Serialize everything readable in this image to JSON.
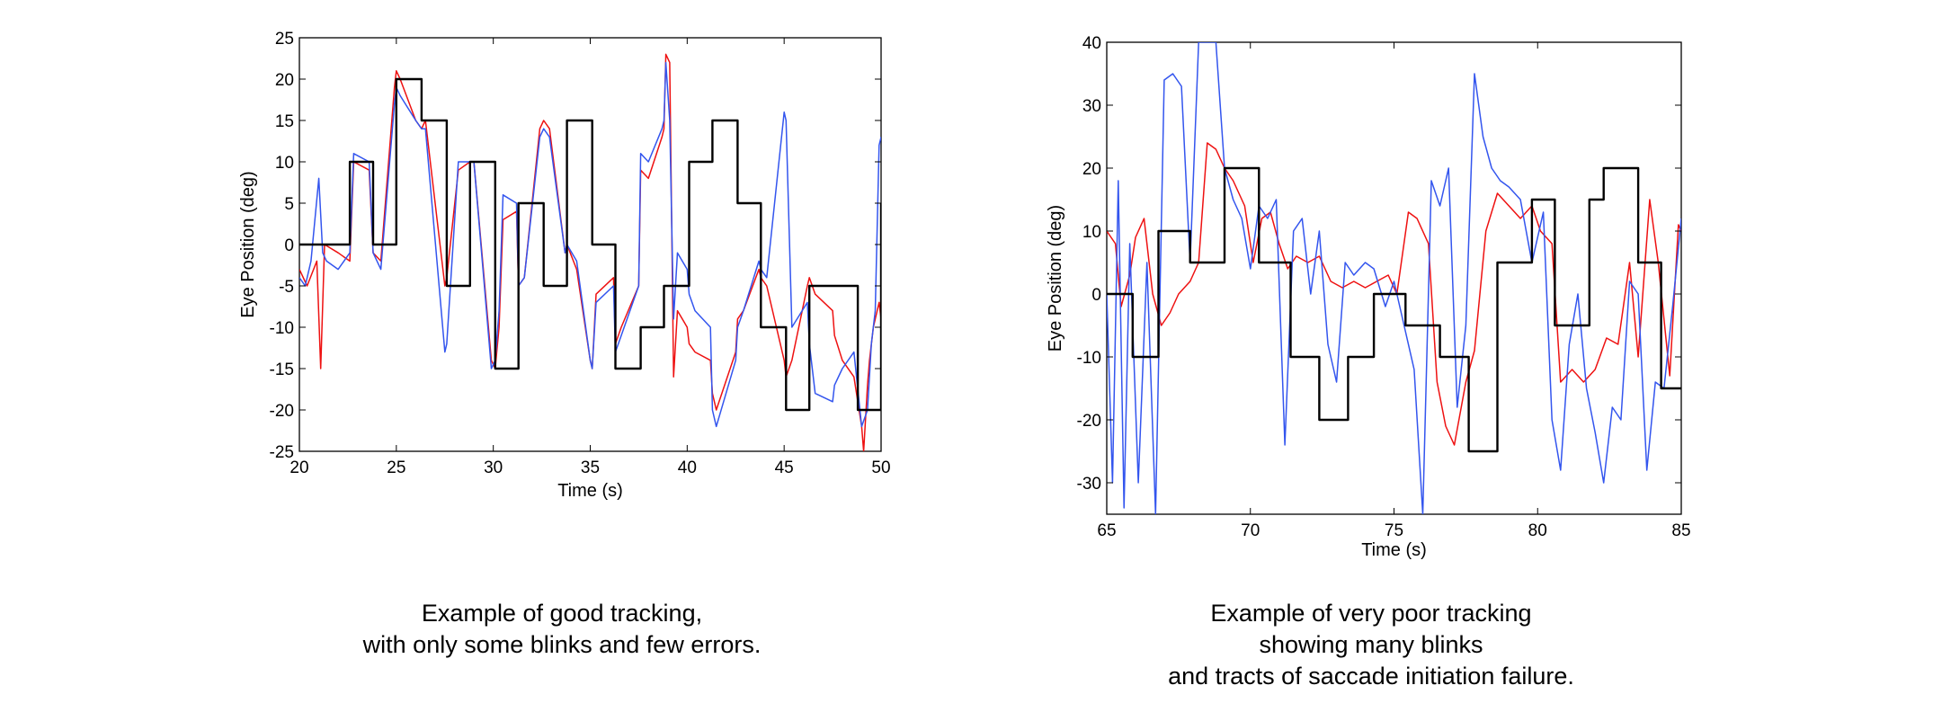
{
  "chart_data": [
    {
      "type": "line",
      "xlabel": "Time (s)",
      "ylabel": "Eye Position (deg)",
      "xlim": [
        20,
        50
      ],
      "ylim": [
        -25,
        25
      ],
      "xticks": [
        20,
        25,
        30,
        35,
        40,
        45,
        50
      ],
      "xtick_labels": [
        "20",
        "25",
        "30",
        "35",
        "40",
        "45",
        "50"
      ],
      "yticks": [
        25,
        20,
        15,
        10,
        5,
        0,
        -5,
        -10,
        -15,
        -20,
        -25
      ],
      "ytick_labels": [
        "25",
        "20",
        "15",
        "10",
        "5",
        "0",
        "-5",
        "-10",
        "-15",
        "-20",
        "-25"
      ],
      "grid": false,
      "series": [
        {
          "color": "#000000",
          "step": true,
          "x": [
            20,
            22.6,
            23.8,
            25,
            26.3,
            27.6,
            28.8,
            30.1,
            31.3,
            32.6,
            33.8,
            35.1,
            36.3,
            37.6,
            38.8,
            40.1,
            41.3,
            42.6,
            43.8,
            45.1,
            46.3,
            47.6,
            48.8,
            50
          ],
          "y": [
            0,
            10,
            0,
            20,
            15,
            -5,
            10,
            -15,
            5,
            -5,
            15,
            0,
            -15,
            -10,
            -5,
            10,
            15,
            5,
            -10,
            -20,
            -5,
            -5,
            -20,
            5
          ]
        },
        {
          "color": "#ee1111",
          "x": [
            20.0,
            20.4,
            20.9,
            21.1,
            21.3,
            22.0,
            22.6,
            22.8,
            23.6,
            23.8,
            24.2,
            24.9,
            25.0,
            25.2,
            26.0,
            26.3,
            26.5,
            27.5,
            27.6,
            28.2,
            28.8,
            29.0,
            29.9,
            30.1,
            30.3,
            30.5,
            31.2,
            31.3,
            31.6,
            32.4,
            32.6,
            32.9,
            33.7,
            33.8,
            34.3,
            35.0,
            35.1,
            35.3,
            36.2,
            36.3,
            36.6,
            37.5,
            37.6,
            38.0,
            38.7,
            38.8,
            38.9,
            39.1,
            39.3,
            39.5,
            40.0,
            40.1,
            40.4,
            41.2,
            41.3,
            41.5,
            42.5,
            42.6,
            42.9,
            43.7,
            43.8,
            44.1,
            45.0,
            45.1,
            45.4,
            46.2,
            46.3,
            46.6,
            47.5,
            47.6,
            48.0,
            48.6,
            49.0,
            49.1,
            49.3,
            49.4,
            49.6,
            49.9,
            50.0
          ],
          "y": [
            -3,
            -5,
            -2,
            -15,
            0,
            -1,
            -2,
            10,
            9,
            -1,
            -2,
            19,
            21,
            20,
            15,
            14,
            15,
            -5,
            -4,
            9,
            10,
            10,
            -14,
            -15,
            -10,
            3,
            4,
            -5,
            -4,
            14,
            15,
            14,
            -1,
            0,
            -3,
            -14,
            -15,
            -6,
            -4,
            -12,
            -10,
            -5,
            9,
            8,
            13,
            14,
            23,
            22,
            -16,
            -8,
            -10,
            -12,
            -13,
            -14,
            -18,
            -20,
            -13,
            -9,
            -8,
            -3,
            -4,
            -5,
            -14,
            -16,
            -14,
            -5,
            -4,
            -6,
            -8,
            -11,
            -14,
            -16,
            -22,
            -25,
            -17,
            -14,
            -10,
            -7,
            -9
          ]
        },
        {
          "color": "#3355ee",
          "x": [
            20.0,
            20.3,
            20.6,
            21.0,
            21.2,
            21.4,
            22.0,
            22.6,
            22.8,
            23.6,
            23.8,
            24.2,
            24.9,
            25.0,
            25.2,
            26.0,
            26.3,
            26.5,
            27.5,
            27.6,
            28.2,
            28.8,
            29.0,
            29.9,
            30.1,
            30.3,
            30.5,
            31.2,
            31.3,
            31.6,
            32.4,
            32.6,
            32.9,
            33.7,
            33.8,
            34.3,
            35.0,
            35.1,
            35.3,
            36.2,
            36.3,
            36.6,
            37.5,
            37.6,
            38.0,
            38.7,
            38.8,
            38.9,
            39.1,
            39.3,
            39.5,
            40.0,
            40.1,
            40.4,
            41.2,
            41.3,
            41.5,
            42.5,
            42.6,
            42.9,
            43.7,
            43.8,
            44.1,
            45.0,
            45.1,
            45.4,
            46.2,
            46.3,
            46.6,
            47.5,
            47.6,
            48.0,
            48.6,
            49.0,
            49.3,
            49.5,
            49.7,
            49.9,
            50.0
          ],
          "y": [
            -4,
            -5,
            -2,
            8,
            -1,
            -2,
            -3,
            -1,
            11,
            10,
            -1,
            -3,
            17,
            19,
            18,
            15,
            14,
            14,
            -13,
            -12,
            10,
            10,
            10,
            -15,
            -14,
            -8,
            6,
            5,
            -5,
            -4,
            13,
            14,
            13,
            -1,
            0,
            -2,
            -14,
            -15,
            -7,
            -5,
            -13,
            -11,
            -5,
            11,
            10,
            14,
            15,
            22,
            15,
            -9,
            -1,
            -3,
            -6,
            -8,
            -10,
            -20,
            -22,
            -14,
            -10,
            -8,
            -2,
            -3,
            -4,
            16,
            15,
            -10,
            -7,
            -12,
            -18,
            -19,
            -17,
            -15,
            -13,
            -22,
            -20,
            -12,
            -8,
            12,
            13
          ]
        }
      ]
    },
    {
      "type": "line",
      "xlabel": "Time (s)",
      "ylabel": "Eye Position (deg)",
      "xlim": [
        65,
        85
      ],
      "ylim": [
        -35,
        40
      ],
      "xticks": [
        65,
        70,
        75,
        80,
        85
      ],
      "xtick_labels": [
        "65",
        "70",
        "75",
        "80",
        "85"
      ],
      "yticks": [
        40,
        30,
        20,
        10,
        0,
        -10,
        -20,
        -30
      ],
      "ytick_labels": [
        "40",
        "30",
        "20",
        "10",
        "0",
        "-10",
        "-20",
        "-30"
      ],
      "grid": false,
      "series": [
        {
          "color": "#000000",
          "step": true,
          "x": [
            65,
            65.9,
            66.8,
            67.9,
            69.1,
            70.3,
            71.4,
            72.4,
            73.4,
            74.3,
            75.4,
            76.6,
            77.6,
            78.6,
            79.8,
            80.6,
            81.8,
            82.3,
            83.5,
            84.3,
            85
          ],
          "y": [
            0,
            -10,
            10,
            5,
            20,
            5,
            -10,
            -20,
            -10,
            0,
            -5,
            -10,
            -25,
            5,
            15,
            -5,
            15,
            20,
            5,
            -15,
            -15
          ]
        },
        {
          "color": "#ee1111",
          "x": [
            65.0,
            65.3,
            65.5,
            65.8,
            66.0,
            66.3,
            66.6,
            66.9,
            67.2,
            67.5,
            67.9,
            68.2,
            68.5,
            68.8,
            69.1,
            69.4,
            69.8,
            70.1,
            70.4,
            70.7,
            71.0,
            71.3,
            71.6,
            72.0,
            72.4,
            72.8,
            73.2,
            73.6,
            74.0,
            74.4,
            74.8,
            75.1,
            75.5,
            75.8,
            76.2,
            76.5,
            76.8,
            77.1,
            77.5,
            77.8,
            78.2,
            78.6,
            79.0,
            79.4,
            79.8,
            80.1,
            80.5,
            80.8,
            81.2,
            81.6,
            82.0,
            82.4,
            82.8,
            83.2,
            83.5,
            83.9,
            84.2,
            84.6,
            84.9,
            85.0
          ],
          "y": [
            10,
            8,
            -2,
            3,
            9,
            12,
            0,
            -5,
            -3,
            0,
            2,
            5,
            24,
            23,
            20,
            18,
            14,
            5,
            12,
            13,
            8,
            4,
            6,
            5,
            6,
            2,
            1,
            2,
            1,
            2,
            3,
            0,
            13,
            12,
            8,
            -14,
            -21,
            -24,
            -14,
            -9,
            10,
            16,
            14,
            12,
            14,
            10,
            8,
            -14,
            -12,
            -14,
            -12,
            -7,
            -8,
            5,
            -10,
            15,
            5,
            -13,
            11,
            10
          ]
        },
        {
          "color": "#3355ee",
          "x": [
            65.0,
            65.2,
            65.4,
            65.6,
            65.8,
            66.1,
            66.4,
            66.7,
            67.0,
            67.3,
            67.6,
            67.9,
            68.2,
            68.5,
            68.8,
            69.1,
            69.4,
            69.7,
            70.0,
            70.3,
            70.6,
            70.9,
            71.2,
            71.5,
            71.8,
            72.1,
            72.4,
            72.7,
            73.0,
            73.3,
            73.6,
            74.0,
            74.3,
            74.7,
            75.0,
            75.4,
            75.7,
            76.0,
            76.3,
            76.6,
            76.9,
            77.2,
            77.5,
            77.8,
            78.1,
            78.4,
            78.7,
            79.0,
            79.4,
            79.8,
            80.2,
            80.5,
            80.8,
            81.1,
            81.4,
            81.7,
            82.0,
            82.3,
            82.6,
            82.9,
            83.2,
            83.5,
            83.8,
            84.1,
            84.4,
            84.7,
            85.0
          ],
          "y": [
            0,
            -30,
            18,
            -34,
            8,
            -30,
            5,
            -35,
            34,
            35,
            33,
            5,
            40,
            40,
            40,
            20,
            15,
            12,
            4,
            14,
            12,
            15,
            -24,
            10,
            12,
            0,
            10,
            -8,
            -14,
            5,
            3,
            5,
            4,
            -2,
            2,
            -6,
            -12,
            -35,
            18,
            14,
            20,
            -18,
            -5,
            35,
            25,
            20,
            18,
            17,
            15,
            5,
            13,
            -20,
            -28,
            -8,
            0,
            -15,
            -22,
            -30,
            -18,
            -20,
            2,
            0,
            -28,
            -14,
            -15,
            -2,
            12
          ]
        }
      ]
    }
  ],
  "captions": {
    "left": [
      "Example of good tracking,",
      "with only some blinks and few errors."
    ],
    "right": [
      "Example of very poor tracking",
      "showing many blinks",
      "and tracts of saccade initiation failure."
    ]
  }
}
